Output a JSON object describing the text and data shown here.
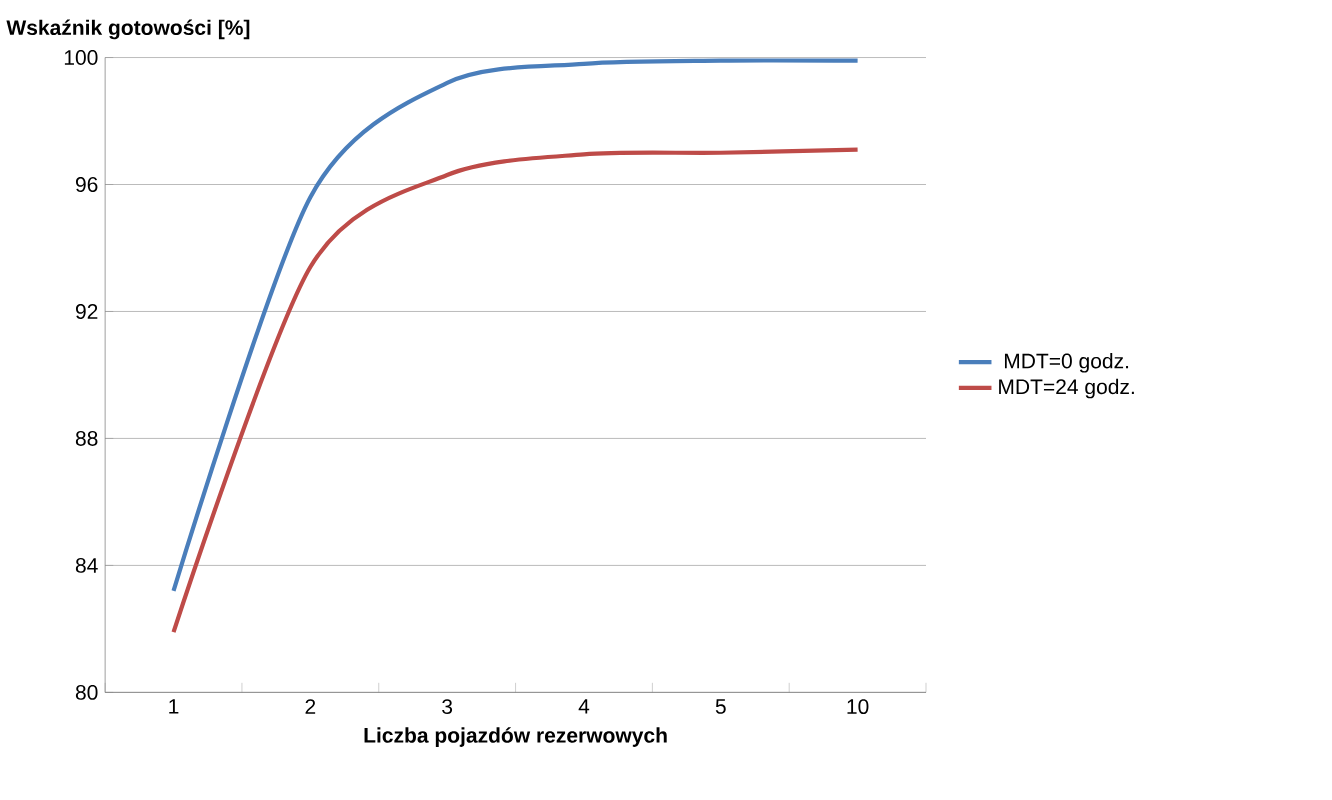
{
  "chart_data": {
    "type": "line",
    "title": "Wskaźnik gotowości [%]",
    "xlabel": "Liczba pojazdów rezerwowych",
    "categories": [
      "1",
      "2",
      "3",
      "4",
      "5",
      "10"
    ],
    "series": [
      {
        "name": "MDT=0 godz.",
        "color": "#4a7ebb",
        "values": [
          83.2,
          95.6,
          99.2,
          99.8,
          99.9,
          99.9
        ]
      },
      {
        "name": "MDT=24 godz.",
        "color": "#be4b48",
        "values": [
          81.9,
          93.4,
          96.3,
          96.95,
          97.0,
          97.1
        ]
      }
    ],
    "ylim": [
      80,
      100
    ],
    "yticks": [
      80,
      84,
      88,
      92,
      96,
      100
    ],
    "grid": "y",
    "legend": "right",
    "marker": "none",
    "line_style": "solid"
  }
}
